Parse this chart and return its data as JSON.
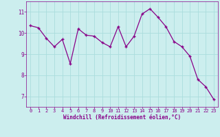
{
  "x": [
    0,
    1,
    2,
    3,
    4,
    5,
    6,
    7,
    8,
    9,
    10,
    11,
    12,
    13,
    14,
    15,
    16,
    17,
    18,
    19,
    20,
    21,
    22,
    23
  ],
  "y": [
    10.35,
    10.25,
    9.75,
    9.35,
    9.7,
    8.55,
    10.2,
    9.9,
    9.85,
    9.55,
    9.35,
    10.3,
    9.35,
    9.85,
    10.9,
    11.15,
    10.75,
    10.3,
    9.6,
    9.35,
    8.9,
    7.8,
    7.45,
    6.85
  ],
  "line_color": "#880088",
  "marker": "+",
  "marker_size": 3.5,
  "marker_lw": 1.0,
  "line_width": 0.9,
  "bg_color": "#cceeee",
  "grid_color": "#aadddd",
  "xlabel": "Windchill (Refroidissement éolien,°C)",
  "xlabel_color": "#880088",
  "tick_color": "#880088",
  "spine_color": "#880088",
  "ylim": [
    6.5,
    11.5
  ],
  "xlim": [
    -0.5,
    23.5
  ],
  "yticks": [
    7,
    8,
    9,
    10,
    11
  ],
  "xticks": [
    0,
    1,
    2,
    3,
    4,
    5,
    6,
    7,
    8,
    9,
    10,
    11,
    12,
    13,
    14,
    15,
    16,
    17,
    18,
    19,
    20,
    21,
    22,
    23
  ],
  "tick_fontsize": 5.0,
  "xlabel_fontsize": 5.5,
  "ytick_fontsize": 5.5
}
